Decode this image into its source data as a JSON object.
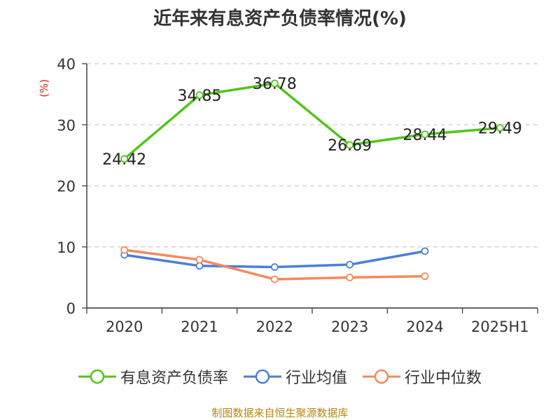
{
  "source_text": "制图数据来自恒生聚源数据库",
  "chart_data": {
    "type": "line",
    "title": "近年来有息资产负债率情况(%)",
    "ylabel": "(%)",
    "ylabel_color": "#e02020",
    "categories": [
      "2020",
      "2021",
      "2022",
      "2023",
      "2024",
      "2025H1"
    ],
    "yticks": [
      "0",
      "10",
      "20",
      "30",
      "40"
    ],
    "ylim": [
      0,
      40
    ],
    "grid": true,
    "legend_position": "bottom",
    "series": [
      {
        "name": "有息资产负债率",
        "color": "#52c41a",
        "values": [
          24.42,
          34.85,
          36.78,
          26.69,
          28.44,
          29.49
        ],
        "labels": [
          "24.42",
          "34.85",
          "36.78",
          "26.69",
          "28.44",
          "29.49"
        ]
      },
      {
        "name": "行业均值",
        "color": "#4a7fdc",
        "values": [
          8.7,
          6.9,
          6.7,
          7.1,
          9.3,
          null
        ],
        "labels": null
      },
      {
        "name": "行业中位数",
        "color": "#f5895c",
        "values": [
          9.5,
          7.9,
          4.7,
          5.0,
          5.2,
          null
        ],
        "labels": null
      }
    ]
  }
}
